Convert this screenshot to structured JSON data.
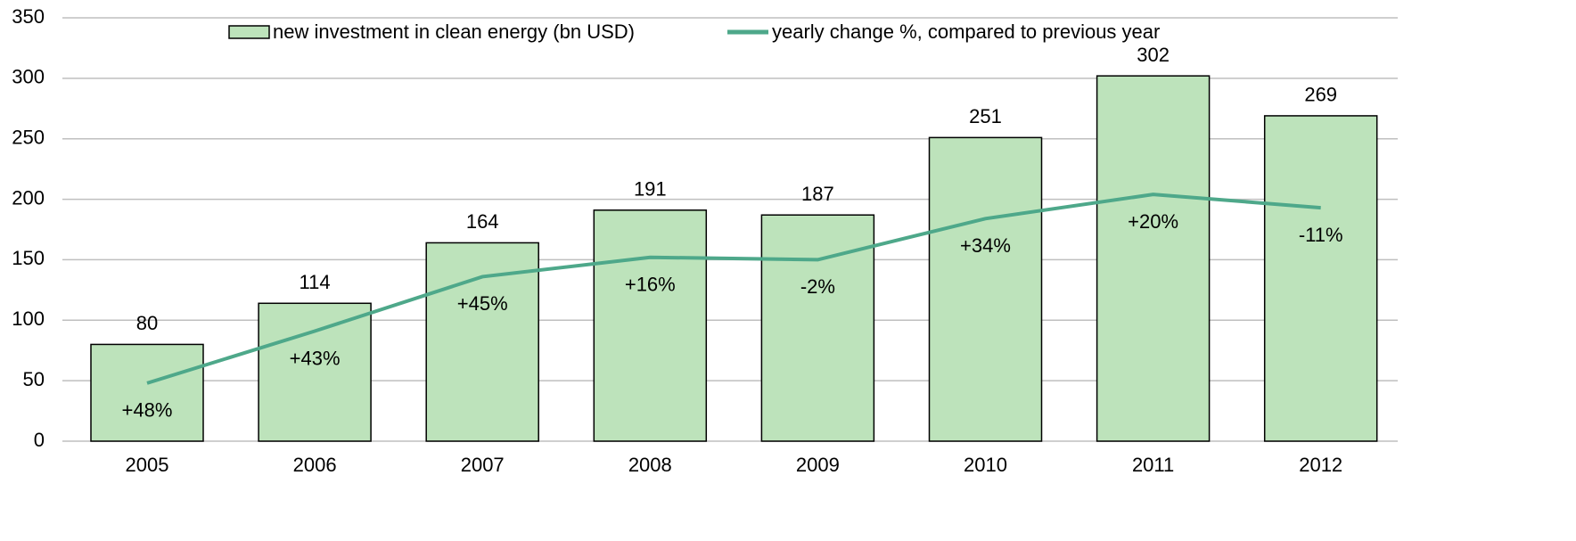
{
  "chart_data": {
    "type": "bar",
    "categories": [
      "2005",
      "2006",
      "2007",
      "2008",
      "2009",
      "2010",
      "2011",
      "2012"
    ],
    "series": [
      {
        "name": "new investment in clean energy (bn USD)",
        "color": "#bde3bb",
        "values": [
          80,
          114,
          164,
          191,
          187,
          251,
          302,
          269
        ]
      },
      {
        "name": "yearly change %, compared to previous year",
        "color": "#4ea88a",
        "type": "line",
        "cumulative": true,
        "values": [
          48,
          43,
          45,
          16,
          -2,
          34,
          20,
          -11
        ],
        "value_labels": [
          "+48%",
          "+43%",
          "+45%",
          "+16%",
          "-2%",
          "+34%",
          "+20%",
          "-11%"
        ]
      }
    ],
    "ylim": [
      0,
      350
    ],
    "yticks": [
      0,
      50,
      100,
      150,
      200,
      250,
      300,
      350
    ],
    "grid": true,
    "legend": "top"
  }
}
